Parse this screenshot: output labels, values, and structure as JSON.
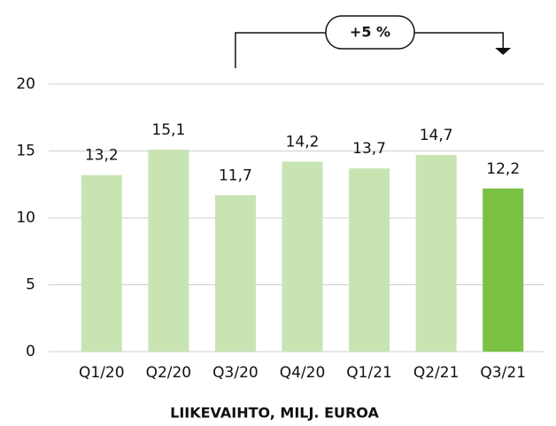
{
  "chart_data": {
    "type": "bar",
    "x_label": "LIIKEVAIHTO, MILJ. EUROA",
    "annotation": "+5 %",
    "categories": [
      "Q1/20",
      "Q2/20",
      "Q3/20",
      "Q4/20",
      "Q1/21",
      "Q2/21",
      "Q3/21"
    ],
    "values": [
      13.2,
      15.1,
      11.7,
      14.2,
      13.7,
      14.7,
      12.2
    ],
    "value_labels": [
      "13,2",
      "15,1",
      "11,7",
      "14,2",
      "13,7",
      "14,7",
      "12,2"
    ],
    "colors": [
      "#c8e4b3",
      "#c8e4b3",
      "#c8e4b3",
      "#c8e4b3",
      "#c8e4b3",
      "#c8e4b3",
      "#7bc144"
    ],
    "ylim": [
      0,
      20
    ],
    "yticks": [
      0,
      5,
      10,
      15,
      20
    ],
    "grid": true
  }
}
